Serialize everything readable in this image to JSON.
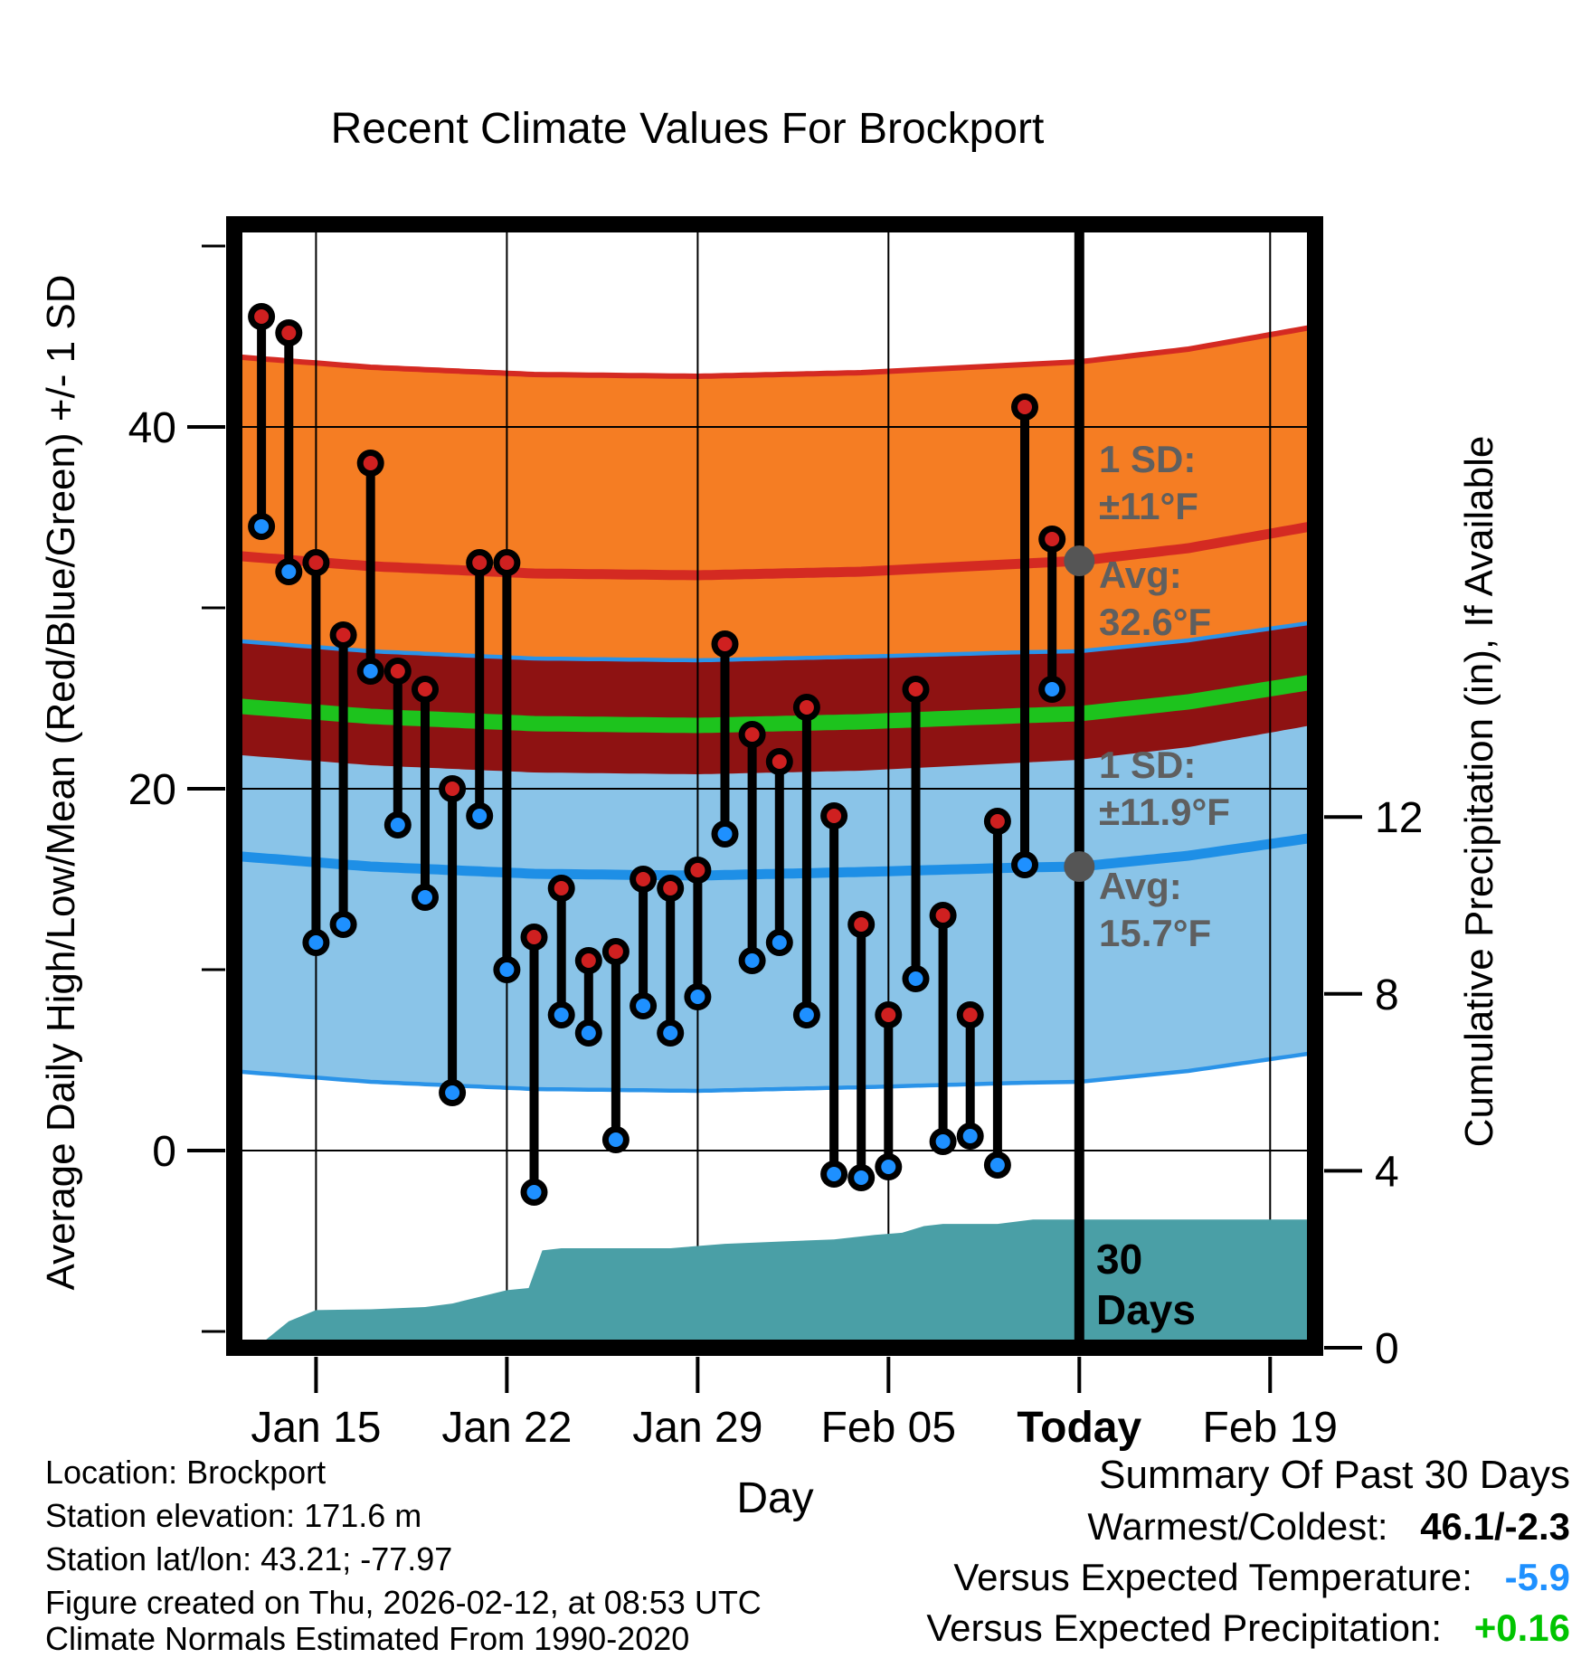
{
  "title": "Recent Climate Values For Brockport",
  "axes": {
    "x_label": "Day",
    "y_left_label": "Average Daily High/Low/Mean (Red/Blue/Green) +/- 1 SD",
    "y_right_label": "Cumulative Precipitation (in), If Available",
    "x_ticks": [
      {
        "label": "Jan 15",
        "t": 4,
        "emphasis": false
      },
      {
        "label": "Jan 22",
        "t": 11,
        "emphasis": false
      },
      {
        "label": "Jan 29",
        "t": 18,
        "emphasis": false
      },
      {
        "label": "Feb 05",
        "t": 25,
        "emphasis": false
      },
      {
        "label": "Today",
        "t": 32,
        "emphasis": true
      },
      {
        "label": "Feb 19",
        "t": 39,
        "emphasis": false
      }
    ],
    "y_left_ticks": [
      {
        "label": "0",
        "v": 0
      },
      {
        "label": "20",
        "v": 20
      },
      {
        "label": "40",
        "v": 40
      }
    ],
    "y_left_minor_ticks": [
      -10,
      10,
      30,
      50
    ],
    "y_right_ticks": [
      {
        "label": "0",
        "p": 0
      },
      {
        "label": "4",
        "p": 4
      },
      {
        "label": "8",
        "p": 8
      },
      {
        "label": "12",
        "p": 12
      }
    ]
  },
  "annotations": {
    "sd_high": {
      "line1": "1 SD:",
      "line2": "±11°F"
    },
    "avg_high": {
      "line1": "Avg:",
      "line2": "32.6°F"
    },
    "sd_low": {
      "line1": "1 SD:",
      "line2": "±11.9°F"
    },
    "avg_low": {
      "line1": "Avg:",
      "line2": "15.7°F"
    },
    "window": {
      "line1": "30",
      "line2": "Days"
    }
  },
  "summary": {
    "title": "Summary Of Past 30 Days",
    "rows": [
      {
        "label": "Warmest/Coldest:",
        "value": "46.1/-2.3",
        "value_color": "#000000"
      },
      {
        "label": "Versus Expected Temperature:",
        "value": "-5.9",
        "value_color": "#1e90ff"
      },
      {
        "label": "Versus Expected Precipitation:",
        "value": "+0.16",
        "value_color": "#00c400"
      }
    ]
  },
  "station_info": {
    "lines": [
      "Location: Brockport",
      "Station elevation: 171.6 m",
      "Station lat/lon: 43.21; -77.97",
      "Figure created on Thu, 2026-02-12, at 08:53 UTC",
      "Climate Normals Estimated From 1990-2020"
    ]
  },
  "colors": {
    "high_band": "#f57d23",
    "high_band_edge": "#d42a22",
    "low_band": "#8ac4e8",
    "low_band_edge": "#2a93e8",
    "overlap_band": "#8e1212",
    "avg_high_line": "#d42a22",
    "avg_low_line": "#1e8fe6",
    "mean_line": "#1dc31d",
    "precip_area": "#4a9fa6",
    "stem": "#000000",
    "high_dot": "#cf2020",
    "low_dot": "#1e90ff",
    "today_marker": "#555555",
    "annotation_text": "#5f5f5f"
  },
  "chart_data": [
    {
      "type": "scatter",
      "name": "daily-high-low-temperatures",
      "title": "Daily observed high/low vs climate normals (°F)",
      "xlabel": "Day",
      "ylabel": "Average Daily High/Low/Mean (Red/Blue/Green) +/- 1 SD",
      "ylim": [
        -10.9,
        51.2
      ],
      "x_domain_days_from_jan11": [
        1,
        40.65
      ],
      "today_day_from_jan11": 32,
      "x_dates": [
        "Jan 13",
        "Jan 14",
        "Jan 15",
        "Jan 16",
        "Jan 17",
        "Jan 18",
        "Jan 19",
        "Jan 20",
        "Jan 21",
        "Jan 22",
        "Jan 23",
        "Jan 24",
        "Jan 25",
        "Jan 26",
        "Jan 27",
        "Jan 28",
        "Jan 29",
        "Jan 30",
        "Jan 31",
        "Feb 01",
        "Feb 02",
        "Feb 03",
        "Feb 04",
        "Feb 05",
        "Feb 06",
        "Feb 07",
        "Feb 08",
        "Feb 09",
        "Feb 10",
        "Feb 11"
      ],
      "days_from_jan11": [
        2,
        3,
        4,
        5,
        6,
        7,
        8,
        9,
        10,
        11,
        12,
        13,
        14,
        15,
        16,
        17,
        18,
        19,
        20,
        21,
        22,
        23,
        24,
        25,
        26,
        27,
        28,
        29,
        30,
        31
      ],
      "series": [
        {
          "name": "daily_high_f",
          "color": "#cf2020",
          "values": [
            46.1,
            45.2,
            32.5,
            28.5,
            38.0,
            26.5,
            25.5,
            20.0,
            32.5,
            32.5,
            11.8,
            14.5,
            10.5,
            11.0,
            15.0,
            14.5,
            15.5,
            28.0,
            23.0,
            21.5,
            24.5,
            18.5,
            12.5,
            7.5,
            25.5,
            13.0,
            7.5,
            18.2,
            41.1,
            33.8
          ]
        },
        {
          "name": "daily_low_f",
          "color": "#1e90ff",
          "values": [
            34.5,
            32.0,
            11.5,
            12.5,
            26.5,
            18.0,
            14.0,
            3.2,
            18.5,
            10.0,
            -2.3,
            7.5,
            6.5,
            0.6,
            8.0,
            6.5,
            8.5,
            17.5,
            10.5,
            11.5,
            7.5,
            -1.3,
            -1.5,
            -0.9,
            9.5,
            0.5,
            0.8,
            -0.8,
            15.8,
            25.5
          ]
        }
      ],
      "normals": {
        "days_from_jan11": [
          0,
          6,
          12,
          18,
          24,
          30,
          32,
          36,
          42
        ],
        "avg_high_f": [
          33.0,
          32.3,
          31.9,
          31.8,
          32.0,
          32.45,
          32.6,
          33.3,
          34.9
        ],
        "avg_low_f": [
          16.4,
          15.7,
          15.3,
          15.2,
          15.4,
          15.65,
          15.7,
          16.3,
          17.6
        ],
        "sd_high_f": 11,
        "sd_low_f": 11.9,
        "avg_high_today_f": 32.6,
        "avg_low_today_f": 15.7,
        "mean_line_rule": "(avg_high+avg_low)/2"
      }
    },
    {
      "type": "area",
      "name": "cumulative-precipitation",
      "title": "Cumulative precipitation over past 30 days (in)",
      "unit": "in",
      "ylim": [
        0,
        25.4
      ],
      "legend": "none",
      "points_day_vs_inches": [
        [
          1.8,
          0
        ],
        [
          3.0,
          0.6
        ],
        [
          4.0,
          0.85
        ],
        [
          6.0,
          0.87
        ],
        [
          8.0,
          0.92
        ],
        [
          9.0,
          1.0
        ],
        [
          10.0,
          1.15
        ],
        [
          11.0,
          1.3
        ],
        [
          11.8,
          1.35
        ],
        [
          12.3,
          2.2
        ],
        [
          13.0,
          2.25
        ],
        [
          17.0,
          2.25
        ],
        [
          18.0,
          2.3
        ],
        [
          19.0,
          2.35
        ],
        [
          21.0,
          2.4
        ],
        [
          23.0,
          2.45
        ],
        [
          24.5,
          2.55
        ],
        [
          25.5,
          2.6
        ],
        [
          26.3,
          2.75
        ],
        [
          27.0,
          2.8
        ],
        [
          29.0,
          2.8
        ],
        [
          30.3,
          2.9
        ],
        [
          40.65,
          2.9
        ]
      ],
      "final_cumulative_in": 2.9
    }
  ]
}
